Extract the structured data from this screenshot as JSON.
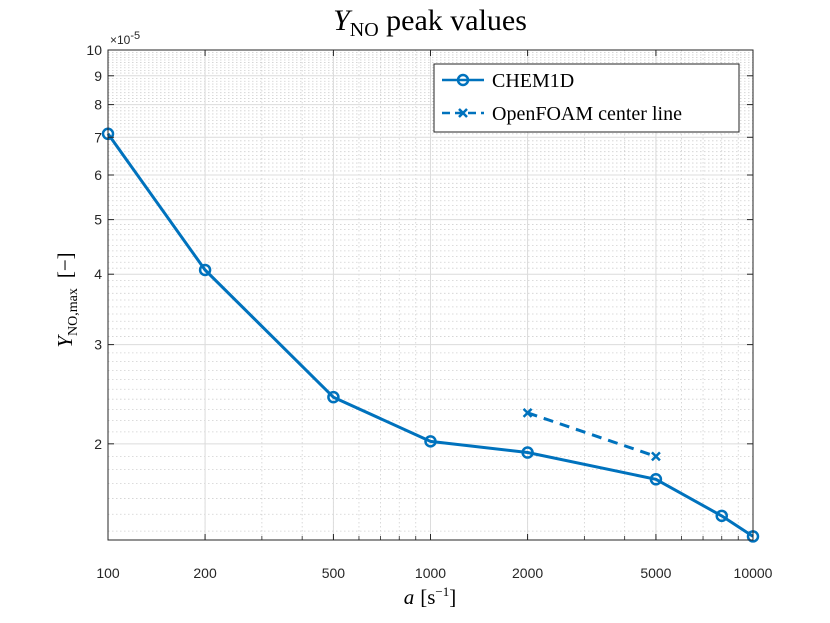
{
  "chart_data": {
    "type": "line",
    "title": "Y",
    "title_subscript": "NO",
    "title_suffix": " peak values",
    "xlabel": "a",
    "xlabel_unit": "[s",
    "xlabel_unit_exp": "−1",
    "xlabel_unit_close": "]",
    "ylabel": "Y",
    "ylabel_subscript": "NO,max",
    "ylabel_unit": "[−]",
    "x_scale": "log",
    "y_scale": "log",
    "xlim": [
      100,
      10000
    ],
    "ylim": [
      1.35e-05,
      0.0001
    ],
    "x_ticks": [
      100,
      200,
      500,
      1000,
      2000,
      5000,
      10000
    ],
    "x_tick_labels": [
      "100",
      "200",
      "500",
      "1000",
      "2000",
      "5000",
      "10000"
    ],
    "y_ticks": [
      2e-05,
      3e-05,
      4e-05,
      5e-05,
      6e-05,
      7e-05,
      8e-05,
      9e-05,
      0.0001
    ],
    "y_tick_labels": [
      "2",
      "3",
      "4",
      "5",
      "6",
      "7",
      "8",
      "9",
      "10"
    ],
    "y_multiplier_base": "×10",
    "y_multiplier_exp": "-5",
    "grid": true,
    "legend_position": "top-right",
    "color": "#0072BD",
    "series": [
      {
        "name": "CHEM1D",
        "style": "solid",
        "marker": "circle",
        "x": [
          100,
          200,
          500,
          1000,
          2000,
          5000,
          8000,
          10000
        ],
        "y": [
          7.1e-05,
          4.07e-05,
          2.42e-05,
          2.02e-05,
          1.93e-05,
          1.73e-05,
          1.49e-05,
          1.37e-05
        ]
      },
      {
        "name": "OpenFOAM center line",
        "style": "dashed",
        "marker": "x",
        "x": [
          2000,
          5000
        ],
        "y": [
          2.27e-05,
          1.9e-05
        ]
      }
    ]
  }
}
